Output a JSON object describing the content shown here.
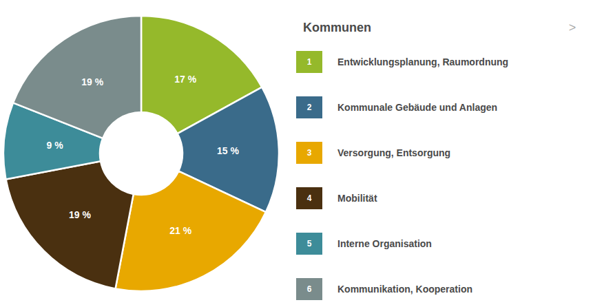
{
  "chart_data": {
    "type": "pie",
    "title": "Kommunen",
    "annotations": [
      ">"
    ],
    "categories": [
      "Entwicklungsplanung, Raumordnung",
      "Kommunale Gebäude und Anlagen",
      "Versorgung, Entsorgung",
      "Mobilität",
      "Interne Organisation",
      "Kommunikation, Kooperation"
    ],
    "category_numbers": [
      "1",
      "2",
      "3",
      "4",
      "5",
      "6"
    ],
    "values": [
      17,
      15,
      21,
      19,
      9,
      19
    ],
    "value_labels": [
      "17 %",
      "15 %",
      "21 %",
      "19 %",
      "9 %",
      "19 %"
    ],
    "colors": [
      "#95b92b",
      "#3a6b8a",
      "#e8a800",
      "#4a3010",
      "#3d8c99",
      "#7a8c8c"
    ],
    "data_labels": true,
    "legend": "right"
  }
}
